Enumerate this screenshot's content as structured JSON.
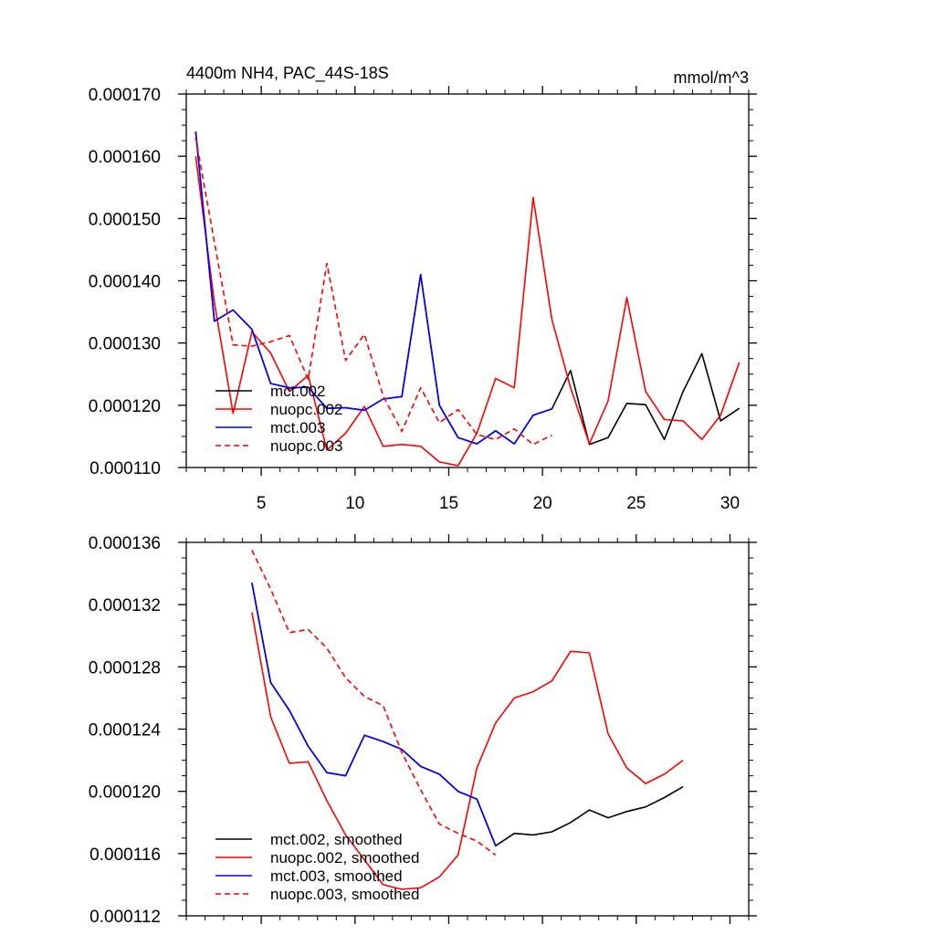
{
  "chart_data": [
    {
      "type": "line",
      "title": "4400m NH4, PAC_44S-18S",
      "units": "mmol/m^3",
      "xlabel": "",
      "ylabel": "",
      "xlim": [
        1,
        31
      ],
      "ylim": [
        0.00011,
        0.00017
      ],
      "xticks": [
        5,
        10,
        15,
        20,
        25,
        30
      ],
      "xtick_labels": [
        "5",
        "10",
        "15",
        "20",
        "25",
        "30"
      ],
      "yticks": [
        0.00011,
        0.00012,
        0.00013,
        0.00014,
        0.00015,
        0.00016,
        0.00017
      ],
      "ytick_labels": [
        "0.000110",
        "0.000120",
        "0.000130",
        "0.000140",
        "0.000150",
        "0.000160",
        "0.000170"
      ],
      "legend_position": "bottom-left",
      "series": [
        {
          "name": "mct.002",
          "color": "#000000",
          "dash": "solid",
          "x": [
            1.5,
            2.5,
            3.5,
            4.5,
            5.5,
            6.5,
            7.5,
            8.5,
            9.5,
            10.5,
            11.5,
            12.5,
            13.5,
            14.5,
            15.5,
            16.5,
            17.5,
            18.5,
            19.5,
            20.5,
            21.5,
            22.5,
            23.5,
            24.5,
            25.5,
            26.5,
            27.5,
            28.5,
            29.5,
            30.5
          ],
          "y": [
            0.000164,
            0.0001335,
            0.0001353,
            0.0001322,
            0.0001235,
            0.0001228,
            0.0001229,
            0.0001195,
            0.0001196,
            0.0001192,
            0.000121,
            0.0001214,
            0.000141,
            0.00012,
            0.0001148,
            0.0001138,
            0.0001159,
            0.0001138,
            0.0001184,
            0.0001194,
            0.0001256,
            0.0001137,
            0.0001148,
            0.0001203,
            0.0001201,
            0.0001145,
            0.0001222,
            0.0001283,
            0.0001175,
            0.0001195
          ]
        },
        {
          "name": "nuopc.002",
          "color": "#ff0000",
          "dash": "solid",
          "x": [
            1.5,
            2.5,
            3.5,
            4.5,
            5.5,
            6.5,
            7.5,
            8.5,
            9.5,
            10.5,
            11.5,
            12.5,
            13.5,
            14.5,
            15.5,
            16.5,
            17.5,
            18.5,
            19.5,
            20.5,
            21.5,
            22.5,
            23.5,
            24.5,
            25.5,
            26.5,
            27.5,
            28.5,
            29.5,
            30.5
          ],
          "y": [
            0.00016,
            0.0001365,
            0.0001187,
            0.0001318,
            0.0001284,
            0.0001222,
            0.0001248,
            0.0001128,
            0.0001155,
            0.0001198,
            0.0001134,
            0.0001137,
            0.0001134,
            0.0001109,
            0.0001103,
            0.0001155,
            0.0001243,
            0.0001228,
            0.0001534,
            0.0001338,
            0.0001228,
            0.0001138,
            0.0001207,
            0.0001373,
            0.0001222,
            0.0001177,
            0.0001175,
            0.0001145,
            0.0001184,
            0.0001269
          ]
        },
        {
          "name": "mct.003",
          "color": "#0000ff",
          "dash": "solid",
          "x": [
            1.5,
            2.5,
            3.5,
            4.5,
            5.5,
            6.5,
            7.5,
            8.5,
            9.5,
            10.5,
            11.5,
            12.5,
            13.5,
            14.5,
            15.5,
            16.5,
            17.5,
            18.5,
            19.5,
            20.5
          ],
          "y": [
            0.000164,
            0.0001335,
            0.0001353,
            0.0001322,
            0.0001235,
            0.0001228,
            0.0001229,
            0.0001195,
            0.0001196,
            0.0001192,
            0.000121,
            0.0001214,
            0.000141,
            0.00012,
            0.0001148,
            0.0001138,
            0.0001159,
            0.0001138,
            0.0001184,
            0.0001194
          ]
        },
        {
          "name": "nuopc.003",
          "color": "#ff0000",
          "dash": "dashed",
          "x": [
            1.5,
            2.5,
            3.5,
            4.5,
            5.5,
            6.5,
            7.5,
            8.5,
            9.5,
            10.5,
            11.5,
            12.5,
            13.5,
            14.5,
            15.5,
            16.5,
            17.5,
            18.5,
            19.5,
            20.5
          ],
          "y": [
            0.000163,
            0.0001462,
            0.0001297,
            0.0001295,
            0.0001302,
            0.0001312,
            0.0001242,
            0.0001428,
            0.0001272,
            0.0001314,
            0.0001215,
            0.0001158,
            0.0001228,
            0.0001172,
            0.0001193,
            0.0001153,
            0.0001145,
            0.0001162,
            0.0001137,
            0.0001152
          ]
        }
      ]
    },
    {
      "type": "line",
      "title": "",
      "xlabel": "",
      "ylabel": "",
      "xlim": [
        1,
        31
      ],
      "ylim": [
        0.000112,
        0.000136
      ],
      "xticks": [
        5,
        10,
        15,
        20,
        25,
        30
      ],
      "xtick_labels": [],
      "yticks": [
        0.000112,
        0.000116,
        0.00012,
        0.000124,
        0.000128,
        0.000132,
        0.000136
      ],
      "ytick_labels": [
        "0.000112",
        "0.000116",
        "0.000120",
        "0.000124",
        "0.000128",
        "0.000132",
        "0.000136"
      ],
      "legend_position": "bottom-left",
      "series": [
        {
          "name": "mct.002, smoothed",
          "color": "#000000",
          "dash": "solid",
          "x": [
            4.5,
            5.5,
            6.5,
            7.5,
            8.5,
            9.5,
            10.5,
            11.5,
            12.5,
            13.5,
            14.5,
            15.5,
            16.5,
            17.5,
            18.5,
            19.5,
            20.5,
            21.5,
            22.5,
            23.5,
            24.5,
            25.5,
            26.5,
            27.5
          ],
          "y": [
            0.0001334,
            0.000127,
            0.0001252,
            0.0001229,
            0.0001212,
            0.000121,
            0.0001236,
            0.0001232,
            0.0001227,
            0.0001216,
            0.0001211,
            0.00012,
            0.0001195,
            0.0001165,
            0.0001173,
            0.0001172,
            0.0001174,
            0.000118,
            0.0001188,
            0.0001183,
            0.0001187,
            0.000119,
            0.0001196,
            0.0001203
          ]
        },
        {
          "name": "nuopc.002, smoothed",
          "color": "#ff0000",
          "dash": "solid",
          "x": [
            4.5,
            5.5,
            6.5,
            7.5,
            8.5,
            9.5,
            10.5,
            11.5,
            12.5,
            13.5,
            14.5,
            15.5,
            16.5,
            17.5,
            18.5,
            19.5,
            20.5,
            21.5,
            22.5,
            23.5,
            24.5,
            25.5,
            26.5,
            27.5
          ],
          "y": [
            0.0001315,
            0.0001248,
            0.0001218,
            0.0001219,
            0.0001194,
            0.0001172,
            0.0001156,
            0.000114,
            0.0001137,
            0.0001138,
            0.0001145,
            0.0001159,
            0.0001215,
            0.0001244,
            0.000126,
            0.0001264,
            0.0001271,
            0.000129,
            0.0001289,
            0.0001237,
            0.0001215,
            0.0001205,
            0.0001211,
            0.000122
          ]
        },
        {
          "name": "mct.003, smoothed",
          "color": "#0000ff",
          "dash": "solid",
          "x": [
            4.5,
            5.5,
            6.5,
            7.5,
            8.5,
            9.5,
            10.5,
            11.5,
            12.5,
            13.5,
            14.5,
            15.5,
            16.5,
            17.5
          ],
          "y": [
            0.0001334,
            0.000127,
            0.0001252,
            0.0001229,
            0.0001212,
            0.000121,
            0.0001236,
            0.0001232,
            0.0001227,
            0.0001216,
            0.0001211,
            0.00012,
            0.0001195,
            0.0001165
          ]
        },
        {
          "name": "nuopc.003, smoothed",
          "color": "#ff0000",
          "dash": "dashed",
          "x": [
            4.5,
            5.5,
            6.5,
            7.5,
            8.5,
            9.5,
            10.5,
            11.5,
            12.5,
            13.5,
            14.5,
            15.5,
            16.5,
            17.5
          ],
          "y": [
            0.0001355,
            0.000133,
            0.0001302,
            0.0001304,
            0.0001292,
            0.0001273,
            0.0001261,
            0.0001255,
            0.0001225,
            0.0001201,
            0.0001179,
            0.0001173,
            0.0001168,
            0.0001159
          ]
        }
      ]
    }
  ]
}
